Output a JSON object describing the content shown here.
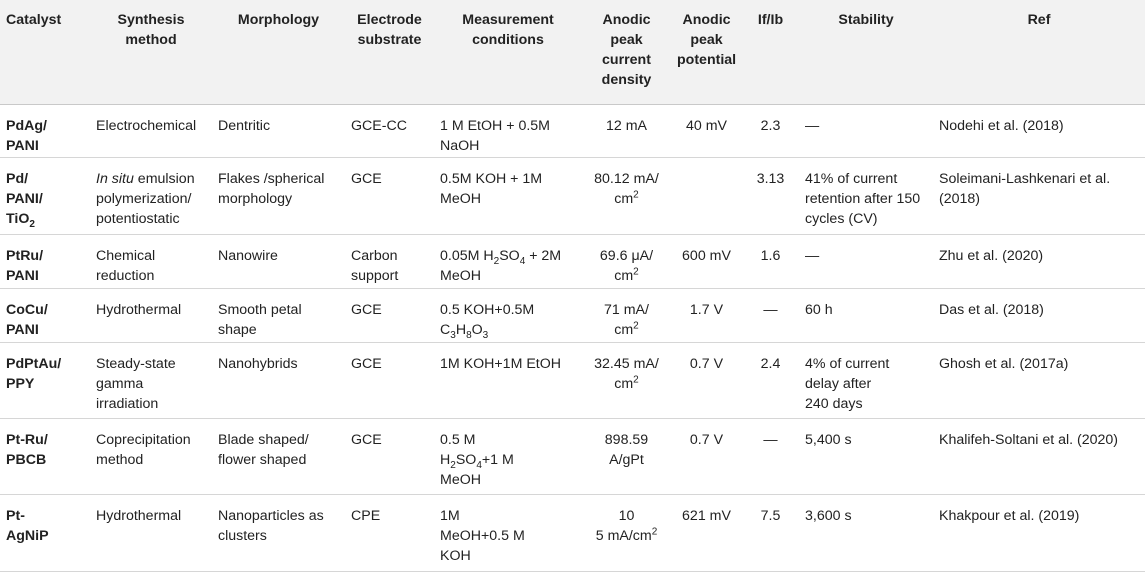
{
  "headers": [
    "Catalyst",
    "Synthesis method",
    "Morphology",
    "Electrode substrate",
    "Measurement conditions",
    "Anodic peak current density",
    "Anodic peak potential",
    "If/Ib",
    "Stability",
    "Ref"
  ],
  "rows": [
    {
      "catalyst": "PdAg/\nPANI",
      "synthesis": "Electrochemical",
      "morphology": "Dentritic",
      "substrate": "GCE-CC",
      "conditions": "1 M EtOH + 0.5M NaOH",
      "current": "12 mA",
      "potential": "40 mV",
      "ifib": "2.3",
      "stability": "—",
      "ref": "Nodehi et al. (2018)"
    },
    {
      "catalyst_a": "Pd/\nPANI/\nTiO",
      "catalyst_sub": "2",
      "synthesis_italic": "In situ",
      "synthesis_rest": " emulsion polymerization/ potentiostatic",
      "morphology": "Flakes /spherical morphology",
      "substrate": "GCE",
      "conditions": "0.5M KOH + 1M MeOH",
      "current_a": "80.12 mA/\ncm",
      "current_sup": "2",
      "potential": "",
      "ifib": "3.13",
      "stability": "41% of current retention after 150 cycles (CV)",
      "ref": "Soleimani-Lashkenari et al. (2018)"
    },
    {
      "catalyst": "PtRu/\nPANI",
      "synthesis": "Chemical reduction",
      "morphology": "Nanowire",
      "substrate": "Carbon support",
      "conditions_a": "0.05M H",
      "conditions_sub": "2",
      "conditions_b": "SO",
      "conditions_sub2": "4",
      "conditions_c": " + 2M MeOH",
      "current_a": "69.6 μA/\ncm",
      "current_sup": "2",
      "potential": "600 mV",
      "ifib": "1.6",
      "stability": "—",
      "ref": "Zhu et al. (2020)"
    },
    {
      "catalyst": "CoCu/\nPANI",
      "synthesis": "Hydrothermal",
      "morphology": "Smooth petal shape",
      "substrate": "GCE",
      "conditions_a": "0.5 KOH+0.5M C",
      "conditions_sub": "3",
      "conditions_b": "H",
      "conditions_sub2": "8",
      "conditions_c": "O",
      "conditions_sub3": "3",
      "current_a": "71 mA/\ncm",
      "current_sup": "2",
      "potential": "1.7 V",
      "ifib": "—",
      "stability": "60 h",
      "ref": "Das et al. (2018)"
    },
    {
      "catalyst": "PdPtAu/\nPPY",
      "synthesis": "Steady-state gamma irradiation",
      "morphology": "Nanohybrids",
      "substrate": "GCE",
      "conditions": "1M KOH+1M EtOH",
      "current_a": "32.45 mA/\ncm",
      "current_sup": "2",
      "potential": "0.7 V",
      "ifib": "2.4",
      "stability": "4% of current delay after\n240 days",
      "ref": "Ghosh et al. (2017a)"
    },
    {
      "catalyst": "Pt-Ru/\nPBCB",
      "synthesis": "Coprecipitation method",
      "morphology": "Blade shaped/ flower shaped",
      "substrate": "GCE",
      "conditions_a": "0.5 M\nH",
      "conditions_sub": "2",
      "conditions_b": "SO",
      "conditions_sub2": "4",
      "conditions_c": "+1 M\nMeOH",
      "current": "898.59\nA/gPt",
      "potential": "0.7 V",
      "ifib": "—",
      "stability": "5,400 s",
      "ref": "Khalifeh-Soltani et al. (2020)"
    },
    {
      "catalyst": "Pt-\nAgNiP",
      "synthesis": "Hydrothermal",
      "morphology": "Nanoparticles as clusters",
      "substrate": "CPE",
      "conditions": "1M\nMeOH+0.5 M\nKOH",
      "current_a": "10\n5 mA/cm",
      "current_sup": "2",
      "potential": "621 mV",
      "ifib": "7.5",
      "stability": "3,600 s",
      "ref": "Khakpour et al. (2019)"
    }
  ]
}
